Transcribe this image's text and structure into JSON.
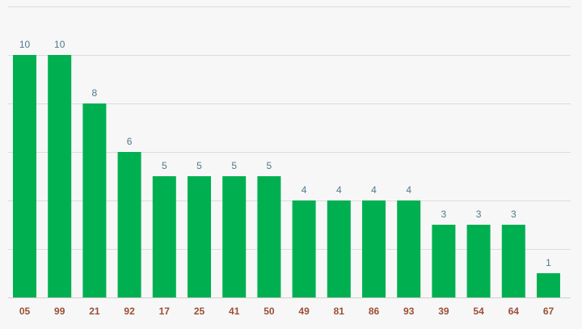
{
  "chart_data": {
    "type": "bar",
    "categories": [
      "05",
      "99",
      "21",
      "92",
      "17",
      "25",
      "41",
      "50",
      "49",
      "81",
      "86",
      "93",
      "39",
      "54",
      "64",
      "67"
    ],
    "values": [
      10,
      10,
      8,
      6,
      5,
      5,
      5,
      5,
      4,
      4,
      4,
      4,
      3,
      3,
      3,
      1
    ],
    "ylim": [
      0,
      12
    ],
    "grid": true,
    "legend": "none",
    "bar_color": "#00b050",
    "value_label_color": "#4f7a8c",
    "category_label_color": "#9b4f35",
    "grid_color": "#dcdcdc"
  }
}
